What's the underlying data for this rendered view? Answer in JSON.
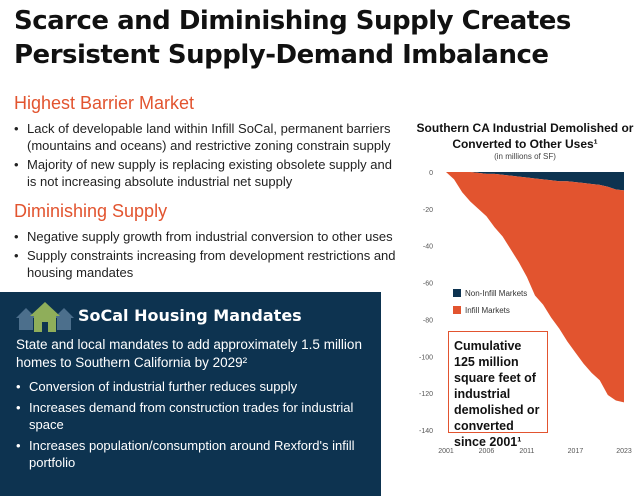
{
  "title": {
    "line1": "Scarce and Diminishing Supply Creates",
    "line2": "Persistent Supply-Demand Imbalance"
  },
  "section1": {
    "heading": "Highest Barrier Market",
    "bullets": [
      "Lack of developable land within Infill SoCal, permanent barriers (mountains and oceans) and restrictive zoning constrain supply",
      "Majority of new supply is replacing existing obsolete supply and is not increasing absolute industrial net supply"
    ]
  },
  "section2": {
    "heading": "Diminishing Supply",
    "bullets": [
      "Negative supply growth from industrial conversion to other uses",
      "Supply constraints increasing from development restrictions and housing mandates"
    ]
  },
  "housing": {
    "icon": "houses-icon",
    "title": "SoCal Housing Mandates",
    "lead": "State and local mandates to add approximately 1.5 million homes to Southern California by 2029²",
    "bullets": [
      "Conversion of industrial further reduces supply",
      "Increases demand from construction trades for industrial space",
      "Increases population/consumption around Rexford's infill portfolio"
    ]
  },
  "callout": "Cumulative 125 million square feet of industrial demolished or converted since 2001¹",
  "chart_data": {
    "type": "area",
    "stacked": true,
    "title": "Southern CA Industrial Demolished or Converted to Other Uses¹",
    "subtitle": "(in millions of SF)",
    "x": [
      2001,
      2002,
      2003,
      2004,
      2005,
      2006,
      2007,
      2008,
      2009,
      2010,
      2011,
      2012,
      2013,
      2014,
      2015,
      2016,
      2017,
      2018,
      2019,
      2020,
      2021,
      2022,
      2023
    ],
    "xticks": [
      "2001",
      "2006",
      "2011",
      "2017",
      "2023"
    ],
    "yticks": [
      "0",
      "-20",
      "-40",
      "-60",
      "-80",
      "-100",
      "-120",
      "-140"
    ],
    "ylim": [
      -140,
      0
    ],
    "legend_placement": "middle-left",
    "series": [
      {
        "name": "Non-Infill Markets",
        "color": "#0d3350",
        "values": [
          0,
          0,
          0,
          0,
          -0.5,
          -1,
          -1,
          -1.5,
          -2,
          -2.5,
          -3,
          -3.5,
          -4,
          -4.5,
          -5,
          -5,
          -5.5,
          -6,
          -6.5,
          -7,
          -8,
          -9.5,
          -10
        ]
      },
      {
        "name": "Infill Markets",
        "color": "#e2542f",
        "values": [
          0,
          -4,
          -11,
          -16,
          -19.5,
          -23,
          -29,
          -33.5,
          -40,
          -46.5,
          -54,
          -63.5,
          -68,
          -74.5,
          -80,
          -87,
          -92.5,
          -98,
          -102.5,
          -106,
          -113,
          -114.5,
          -115
        ]
      }
    ]
  }
}
